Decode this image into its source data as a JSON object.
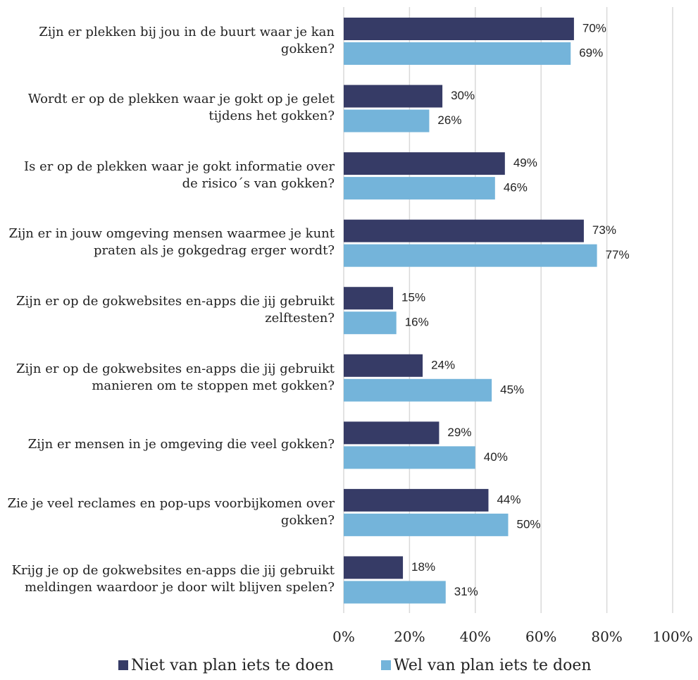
{
  "chart_data": {
    "type": "bar",
    "orientation": "horizontal",
    "categories": [
      "Zijn er plekken bij jou in de buurt waar je kan gokken?",
      "Wordt er op de plekken waar je gokt op je gelet tijdens het gokken?",
      "Is er op de plekken waar je gokt informatie over de risico´s van gokken?",
      "Zijn er in jouw omgeving mensen waarmee je kunt praten als je gokgedrag erger wordt?",
      "Zijn er op de gokwebsites en-apps die jij gebruikt zelftesten?",
      "Zijn er op de gokwebsites en-apps die jij gebruikt manieren om te stoppen met gokken?",
      "Zijn er mensen in je omgeving die veel gokken?",
      "Zie je veel reclames en pop-ups voorbijkomen over gokken?",
      "Krijg je op de gokwebsites en-apps die jij gebruikt meldingen waardoor je door wilt blijven spelen?"
    ],
    "series": [
      {
        "name": "Niet van plan iets te doen",
        "color": "#363b66",
        "values": [
          70,
          30,
          49,
          73,
          15,
          24,
          29,
          44,
          18
        ],
        "value_labels": [
          "70%",
          "30%",
          "49%",
          "73%",
          "15%",
          "24%",
          "29%",
          "44%",
          "18%"
        ]
      },
      {
        "name": "Wel van plan iets te doen",
        "color": "#74b4da",
        "values": [
          69,
          26,
          46,
          77,
          16,
          45,
          40,
          50,
          31
        ],
        "value_labels": [
          "69%",
          "26%",
          "46%",
          "77%",
          "16%",
          "45%",
          "40%",
          "50%",
          "31%"
        ]
      }
    ],
    "xlim": [
      0,
      100
    ],
    "xticks": [
      {
        "value": 0,
        "label": "0%"
      },
      {
        "value": 20,
        "label": "20%"
      },
      {
        "value": 40,
        "label": "40%"
      },
      {
        "value": 60,
        "label": "60%"
      },
      {
        "value": 80,
        "label": "80%"
      },
      {
        "value": 100,
        "label": "100%"
      }
    ],
    "grid": true,
    "legend": "bottom"
  }
}
